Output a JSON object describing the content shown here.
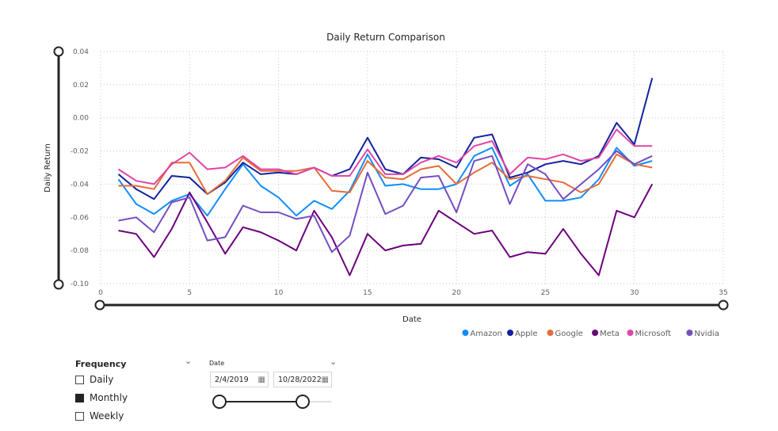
{
  "chart_data": {
    "type": "line",
    "title": "Daily Return Comparison",
    "xlabel": "Date",
    "ylabel": "Daily Return",
    "xlim": [
      0,
      35
    ],
    "ylim": [
      -0.1,
      0.04
    ],
    "xticks": [
      0,
      5,
      10,
      15,
      20,
      25,
      30,
      35
    ],
    "yticks": [
      "0.04",
      "0.02",
      "0.00",
      "-0.02",
      "-0.04",
      "-0.06",
      "-0.08",
      "-0.10"
    ],
    "grid": true,
    "legend_position": "bottom-right",
    "x": [
      1,
      2,
      3,
      4,
      5,
      6,
      7,
      8,
      9,
      10,
      11,
      12,
      13,
      14,
      15,
      16,
      17,
      18,
      19,
      20,
      21,
      22,
      23,
      24,
      25,
      26,
      27,
      28,
      29,
      30,
      31
    ],
    "series": [
      {
        "name": "Amazon",
        "color": "#118DFF",
        "values": [
          -0.037,
          -0.052,
          -0.058,
          -0.05,
          -0.046,
          -0.059,
          -0.043,
          -0.028,
          -0.041,
          -0.048,
          -0.059,
          -0.05,
          -0.055,
          -0.044,
          -0.022,
          -0.041,
          -0.04,
          -0.043,
          -0.043,
          -0.04,
          -0.023,
          -0.018,
          -0.041,
          -0.034,
          -0.05,
          -0.05,
          -0.048,
          -0.037,
          -0.018,
          -0.029,
          -0.026
        ]
      },
      {
        "name": "Apple",
        "color": "#12239E",
        "values": [
          -0.034,
          -0.043,
          -0.049,
          -0.035,
          -0.036,
          -0.046,
          -0.039,
          -0.027,
          -0.034,
          -0.033,
          -0.034,
          -0.03,
          -0.035,
          -0.031,
          -0.012,
          -0.031,
          -0.034,
          -0.024,
          -0.025,
          -0.03,
          -0.012,
          -0.01,
          -0.036,
          -0.033,
          -0.028,
          -0.026,
          -0.028,
          -0.023,
          -0.003,
          -0.016,
          0.024
        ]
      },
      {
        "name": "Google",
        "color": "#E66C37",
        "values": [
          -0.041,
          -0.041,
          -0.043,
          -0.027,
          -0.027,
          -0.046,
          -0.038,
          -0.024,
          -0.032,
          -0.032,
          -0.032,
          -0.03,
          -0.044,
          -0.045,
          -0.026,
          -0.036,
          -0.037,
          -0.031,
          -0.029,
          -0.04,
          -0.033,
          -0.027,
          -0.037,
          -0.035,
          -0.037,
          -0.039,
          -0.045,
          -0.04,
          -0.022,
          -0.028,
          -0.03
        ]
      },
      {
        "name": "Meta",
        "color": "#6B007B",
        "values": [
          -0.068,
          -0.07,
          -0.084,
          -0.067,
          -0.045,
          -0.063,
          -0.082,
          -0.066,
          -0.069,
          -0.074,
          -0.08,
          -0.056,
          -0.072,
          -0.095,
          -0.07,
          -0.08,
          -0.077,
          -0.076,
          -0.056,
          -0.063,
          -0.07,
          -0.068,
          -0.084,
          -0.081,
          -0.082,
          -0.067,
          -0.082,
          -0.095,
          -0.056,
          -0.06,
          -0.04
        ]
      },
      {
        "name": "Microsoft",
        "color": "#E044A7",
        "values": [
          -0.031,
          -0.038,
          -0.04,
          -0.028,
          -0.021,
          -0.031,
          -0.03,
          -0.023,
          -0.031,
          -0.031,
          -0.034,
          -0.03,
          -0.035,
          -0.035,
          -0.019,
          -0.034,
          -0.034,
          -0.027,
          -0.023,
          -0.027,
          -0.017,
          -0.014,
          -0.034,
          -0.024,
          -0.025,
          -0.022,
          -0.026,
          -0.024,
          -0.007,
          -0.017,
          -0.017
        ]
      },
      {
        "name": "Nvidia",
        "color": "#744EC2",
        "values": [
          -0.062,
          -0.06,
          -0.069,
          -0.051,
          -0.048,
          -0.074,
          -0.072,
          -0.053,
          -0.057,
          -0.057,
          -0.061,
          -0.059,
          -0.081,
          -0.071,
          -0.033,
          -0.058,
          -0.053,
          -0.036,
          -0.035,
          -0.057,
          -0.026,
          -0.023,
          -0.052,
          -0.028,
          -0.034,
          -0.049,
          -0.04,
          -0.031,
          -0.02,
          -0.028,
          -0.023
        ]
      }
    ]
  },
  "frequency_slicer": {
    "title": "Frequency",
    "options": [
      {
        "label": "Daily",
        "checked": false
      },
      {
        "label": "Monthly",
        "checked": true
      },
      {
        "label": "Weekly",
        "checked": false
      }
    ]
  },
  "date_slicer": {
    "title": "Date",
    "start": "2/4/2019",
    "end": "10/28/2022"
  }
}
